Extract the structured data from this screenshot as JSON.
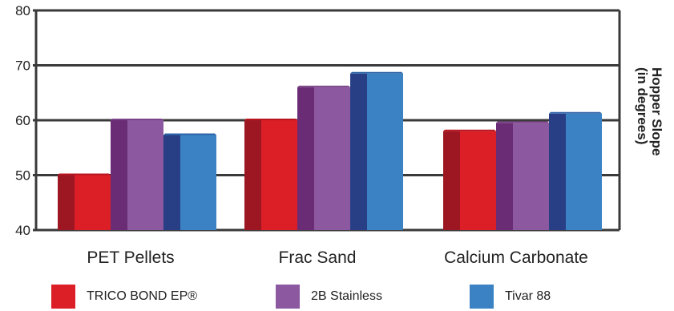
{
  "chart_data": {
    "type": "bar",
    "categories": [
      "PET Pellets",
      "Frac Sand",
      "Calcium Carbonate"
    ],
    "series": [
      {
        "name": "TRICO BOND EP®",
        "values": [
          50,
          60,
          58
        ],
        "color": "#dc1f26",
        "side_color": "#9c1722",
        "top_color": "#b8151f"
      },
      {
        "name": "2B Stainless",
        "values": [
          60,
          66,
          59.5
        ],
        "color": "#8c589f",
        "side_color": "#6a2d75",
        "top_color": "#7a4488"
      },
      {
        "name": "Tivar 88",
        "values": [
          57.3,
          68.5,
          61.2
        ],
        "color": "#3b82c4",
        "side_color": "#283f85",
        "top_color": "#2d64a8"
      }
    ],
    "ylim": [
      40,
      80
    ],
    "yticks": [
      "40",
      "50",
      "60",
      "70",
      "80"
    ],
    "ylabel_line1": "Hopper Slope",
    "ylabel_line2": "(in degrees)",
    "grid": true,
    "legend_position": "bottom"
  }
}
